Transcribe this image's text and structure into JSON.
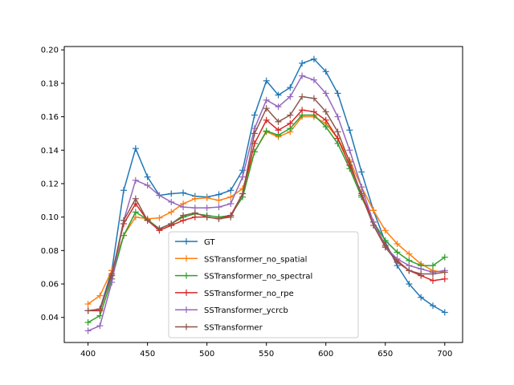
{
  "chart_data": {
    "type": "line",
    "x": [
      400,
      410,
      420,
      430,
      440,
      450,
      460,
      470,
      480,
      490,
      500,
      510,
      520,
      530,
      540,
      550,
      560,
      570,
      580,
      590,
      600,
      610,
      620,
      630,
      640,
      650,
      660,
      670,
      680,
      690,
      700
    ],
    "xlim": [
      380,
      715
    ],
    "ylim": [
      0.025,
      0.202
    ],
    "xticks": [
      400,
      450,
      500,
      550,
      600,
      650,
      700
    ],
    "yticks": [
      0.04,
      0.06,
      0.08,
      0.1,
      0.12,
      0.14,
      0.16,
      0.18,
      0.2
    ],
    "ytick_labels": [
      "0.04",
      "0.06",
      "0.08",
      "0.10",
      "0.12",
      "0.14",
      "0.16",
      "0.18",
      "0.20"
    ],
    "legend_position": "lower-center",
    "marker": "plus",
    "series": [
      {
        "name": "GT",
        "color": "#1f77b4",
        "values": [
          0.044,
          0.045,
          0.068,
          0.116,
          0.141,
          0.124,
          0.113,
          0.114,
          0.1145,
          0.1125,
          0.112,
          0.1135,
          0.116,
          0.128,
          0.161,
          0.1815,
          0.173,
          0.1775,
          0.192,
          0.1945,
          0.187,
          0.174,
          0.152,
          0.127,
          0.104,
          0.085,
          0.071,
          0.06,
          0.052,
          0.047,
          0.043
        ]
      },
      {
        "name": "SSTransformer_no_spatial",
        "color": "#ff7f0e",
        "values": [
          0.048,
          0.053,
          0.068,
          0.089,
          0.1,
          0.099,
          0.0995,
          0.103,
          0.108,
          0.111,
          0.1115,
          0.11,
          0.112,
          0.117,
          0.139,
          0.151,
          0.148,
          0.151,
          0.16,
          0.16,
          0.156,
          0.147,
          0.134,
          0.118,
          0.104,
          0.092,
          0.084,
          0.078,
          0.072,
          0.068,
          0.067
        ]
      },
      {
        "name": "SSTransformer_no_spectral",
        "color": "#2ca02c",
        "values": [
          0.037,
          0.041,
          0.063,
          0.089,
          0.103,
          0.0985,
          0.093,
          0.096,
          0.1,
          0.102,
          0.101,
          0.1,
          0.101,
          0.112,
          0.139,
          0.1515,
          0.149,
          0.153,
          0.161,
          0.161,
          0.154,
          0.144,
          0.129,
          0.112,
          0.097,
          0.086,
          0.079,
          0.074,
          0.071,
          0.071,
          0.076
        ]
      },
      {
        "name": "SSTransformer_no_rpe",
        "color": "#d62728",
        "values": [
          0.044,
          0.044,
          0.066,
          0.096,
          0.108,
          0.098,
          0.092,
          0.095,
          0.098,
          0.1,
          0.1,
          0.099,
          0.101,
          0.114,
          0.144,
          0.158,
          0.152,
          0.156,
          0.164,
          0.163,
          0.158,
          0.147,
          0.131,
          0.114,
          0.097,
          0.083,
          0.074,
          0.068,
          0.065,
          0.062,
          0.063
        ]
      },
      {
        "name": "SSTransformer_ycrcb",
        "color": "#9467bd",
        "values": [
          0.032,
          0.035,
          0.061,
          0.098,
          0.122,
          0.119,
          0.113,
          0.109,
          0.106,
          0.1055,
          0.1055,
          0.106,
          0.108,
          0.124,
          0.153,
          0.17,
          0.166,
          0.172,
          0.1845,
          0.182,
          0.174,
          0.16,
          0.14,
          0.118,
          0.097,
          0.082,
          0.075,
          0.071,
          0.069,
          0.067,
          0.068
        ]
      },
      {
        "name": "SSTransformer",
        "color": "#8c564b",
        "values": [
          0.044,
          0.045,
          0.065,
          0.098,
          0.111,
          0.098,
          0.093,
          0.096,
          0.101,
          0.1025,
          0.1,
          0.099,
          0.1,
          0.114,
          0.15,
          0.165,
          0.157,
          0.161,
          0.172,
          0.171,
          0.163,
          0.151,
          0.133,
          0.113,
          0.095,
          0.082,
          0.073,
          0.068,
          0.066,
          0.066,
          0.067
        ]
      }
    ]
  }
}
